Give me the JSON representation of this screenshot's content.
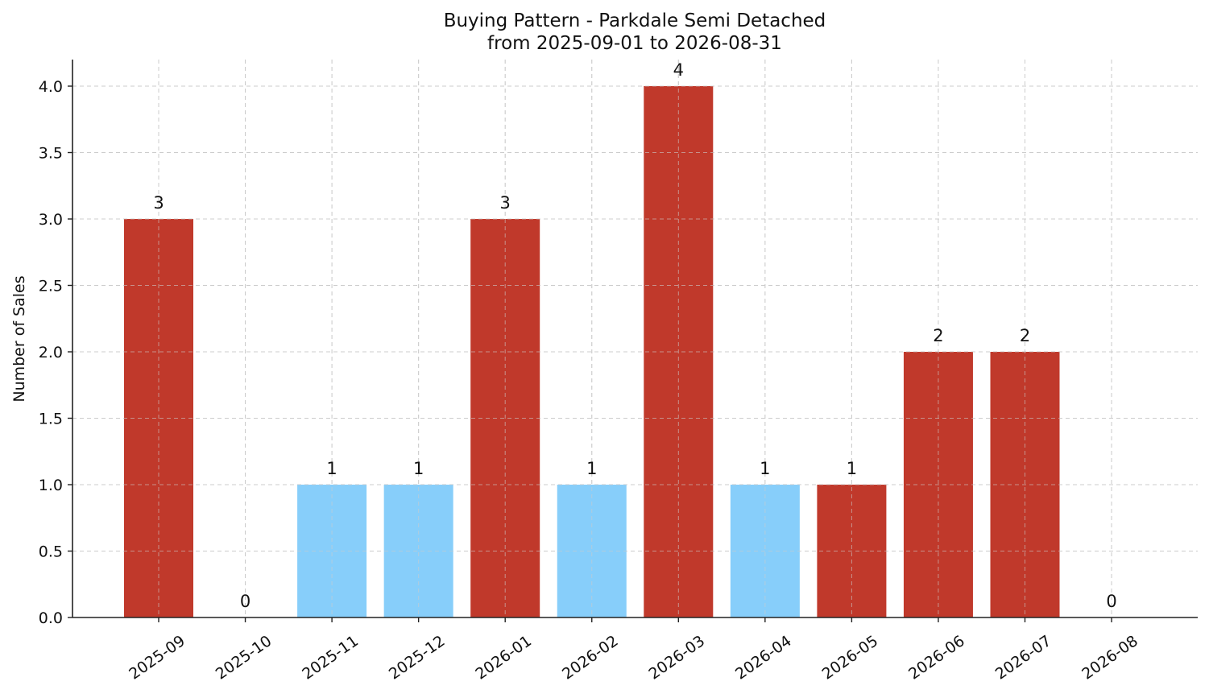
{
  "chart_data": {
    "type": "bar",
    "title": "Buying Pattern - Parkdale Semi Detached",
    "subtitle": "from 2025-09-01 to 2026-08-31",
    "xlabel": "",
    "ylabel": "Number of Sales",
    "categories": [
      "2025-09",
      "2025-10",
      "2025-11",
      "2025-12",
      "2026-01",
      "2026-02",
      "2026-03",
      "2026-04",
      "2026-05",
      "2026-06",
      "2026-07",
      "2026-08"
    ],
    "values": [
      3,
      0,
      1,
      1,
      3,
      1,
      4,
      1,
      1,
      2,
      2,
      0
    ],
    "data_labels": [
      "3",
      "0",
      "1",
      "1",
      "3",
      "1",
      "4",
      "1",
      "1",
      "2",
      "2",
      "0"
    ],
    "bar_colors": [
      "#c0392b",
      "#c0392b",
      "#87cefa",
      "#87cefa",
      "#c0392b",
      "#87cefa",
      "#c0392b",
      "#87cefa",
      "#c0392b",
      "#c0392b",
      "#c0392b",
      "#c0392b"
    ],
    "ylim": [
      0,
      4.2
    ],
    "yticks": [
      0.0,
      0.5,
      1.0,
      1.5,
      2.0,
      2.5,
      3.0,
      3.5,
      4.0
    ],
    "ytick_labels": [
      "0.0",
      "0.5",
      "1.0",
      "1.5",
      "2.0",
      "2.5",
      "3.0",
      "3.5",
      "4.0"
    ],
    "grid": true,
    "legend": "none"
  }
}
